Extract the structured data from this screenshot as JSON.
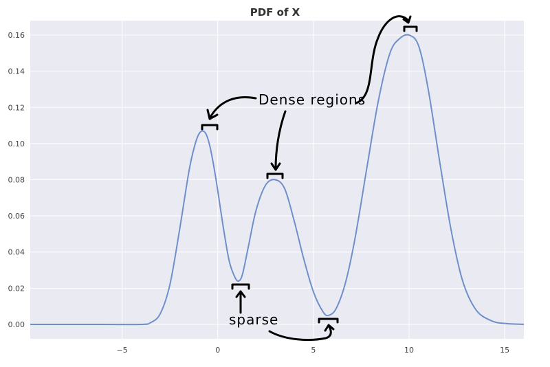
{
  "chart_data": {
    "type": "line",
    "title": "PDF of X",
    "xlabel": "",
    "ylabel": "",
    "xlim": [
      -9.8,
      16
    ],
    "ylim": [
      -0.008,
      0.168
    ],
    "xticks": [
      -5,
      0,
      5,
      10,
      15
    ],
    "xtick_labels": [
      "−5",
      "0",
      "5",
      "10",
      "15"
    ],
    "yticks": [
      0.0,
      0.02,
      0.04,
      0.06,
      0.08,
      0.1,
      0.12,
      0.14,
      0.16
    ],
    "ytick_labels": [
      "0.00",
      "0.02",
      "0.04",
      "0.06",
      "0.08",
      "0.10",
      "0.12",
      "0.14",
      "0.16"
    ],
    "grid": true,
    "series": [
      {
        "values_x": [
          -9.8,
          -6,
          -4,
          -3.5,
          -3,
          -2.5,
          -2,
          -1.5,
          -1.2,
          -1,
          -0.8,
          -0.6,
          -0.4,
          -0.2,
          0,
          0.3,
          0.6,
          0.9,
          1.1,
          1.3,
          1.6,
          2,
          2.5,
          3,
          3.5,
          4,
          4.5,
          5,
          5.5,
          5.8,
          6.2,
          6.7,
          7.2,
          7.8,
          8.4,
          9,
          9.5,
          10,
          10.5,
          11,
          11.6,
          12.2,
          12.8,
          13.5,
          14.3,
          15,
          16
        ],
        "values_y": [
          0,
          0,
          0,
          0.001,
          0.006,
          0.022,
          0.052,
          0.085,
          0.099,
          0.105,
          0.107,
          0.105,
          0.098,
          0.087,
          0.074,
          0.053,
          0.035,
          0.026,
          0.024,
          0.028,
          0.043,
          0.063,
          0.077,
          0.08,
          0.075,
          0.057,
          0.036,
          0.018,
          0.007,
          0.005,
          0.009,
          0.024,
          0.049,
          0.087,
          0.124,
          0.15,
          0.158,
          0.16,
          0.154,
          0.13,
          0.09,
          0.052,
          0.024,
          0.008,
          0.002,
          0.0005,
          0
        ],
        "color": "#6f8fca"
      }
    ],
    "annotations": [
      {
        "text": "Dense regions"
      },
      {
        "text": "sparse"
      }
    ]
  }
}
